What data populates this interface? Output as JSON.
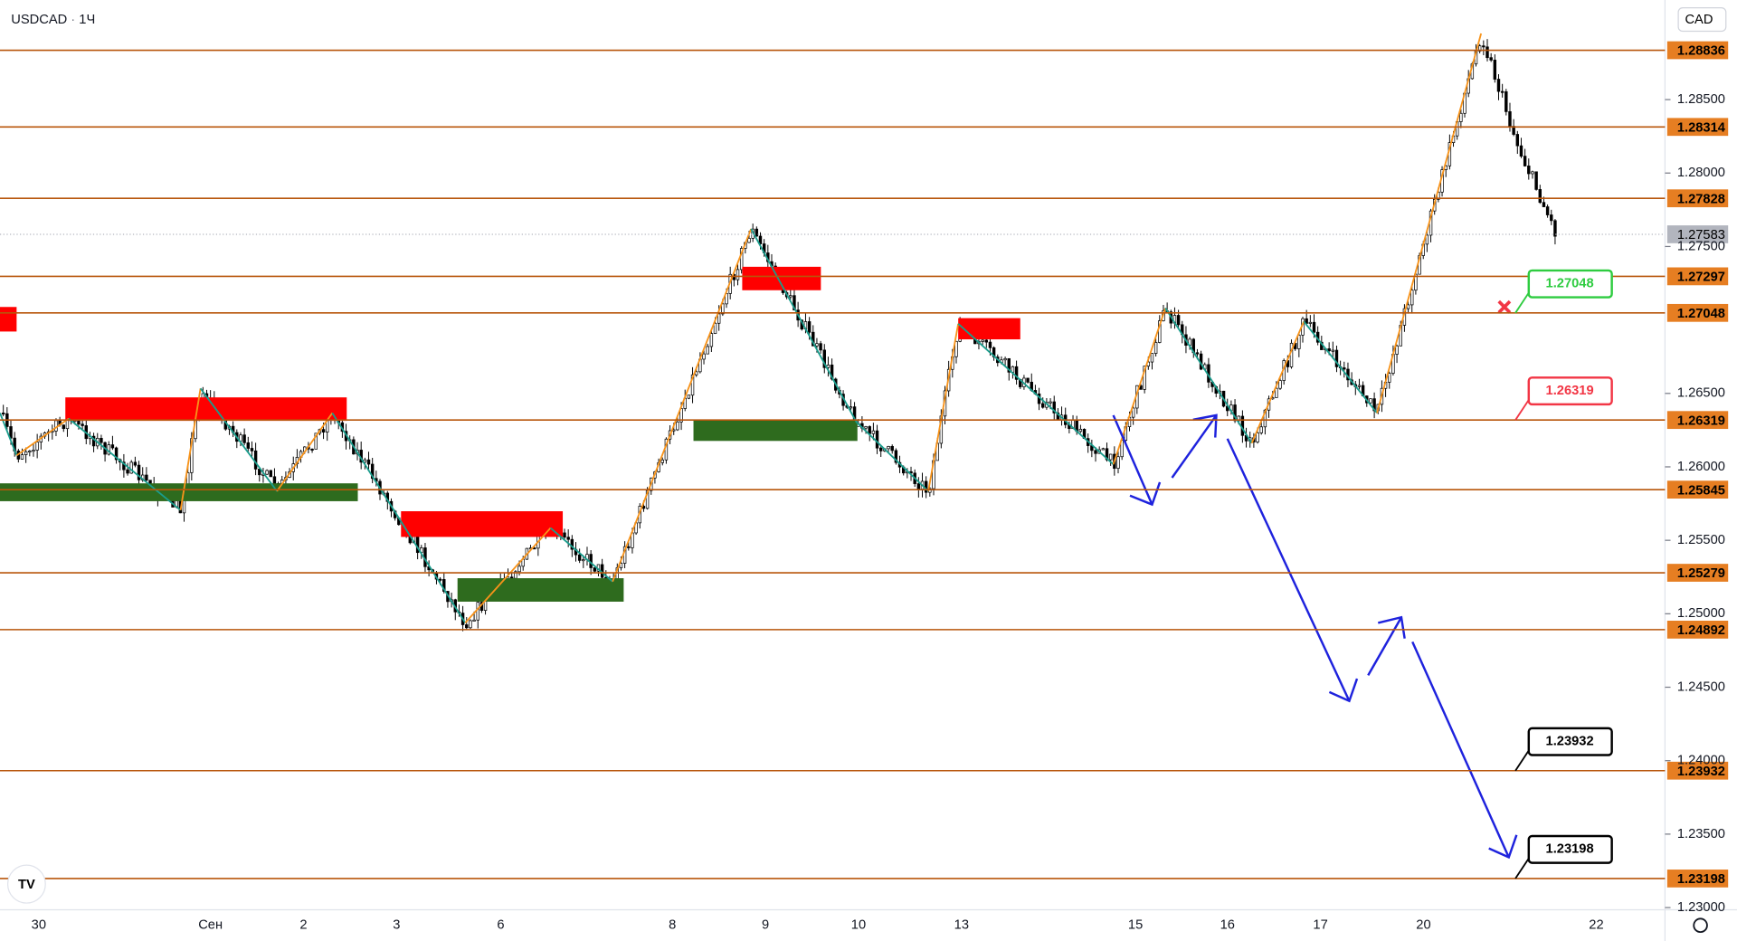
{
  "header": {
    "symbol": "USDCAD",
    "interval": "1Ч"
  },
  "currency": "CAD",
  "price_axis": {
    "ticks": [
      {
        "value": 1.285,
        "label": "1.28500"
      },
      {
        "value": 1.28,
        "label": "1.28000"
      },
      {
        "value": 1.275,
        "label": "1.27500"
      },
      {
        "value": 1.265,
        "label": "1.26500"
      },
      {
        "value": 1.26,
        "label": "1.26000"
      },
      {
        "value": 1.255,
        "label": "1.25500"
      },
      {
        "value": 1.25,
        "label": "1.25000"
      },
      {
        "value": 1.245,
        "label": "1.24500"
      },
      {
        "value": 1.24,
        "label": "1.24000"
      },
      {
        "value": 1.235,
        "label": "1.23500"
      },
      {
        "value": 1.23,
        "label": "1.23000"
      }
    ]
  },
  "levels": [
    1.28836,
    1.28314,
    1.27828,
    1.27297,
    1.27048,
    1.26319,
    1.25845,
    1.25279,
    1.24892,
    1.23932,
    1.23198
  ],
  "current_price": 1.27583,
  "time_axis": [
    "30",
    "Сен",
    "2",
    "3",
    "6",
    "8",
    "9",
    "10",
    "13",
    "15",
    "16",
    "17",
    "20",
    "22"
  ],
  "callouts": [
    {
      "value": 1.27048,
      "color": "#2ecc40"
    },
    {
      "value": 1.26319,
      "color": "#f23645"
    },
    {
      "value": 1.23932,
      "color": "#000000"
    },
    {
      "value": 1.23198,
      "color": "#000000"
    }
  ]
}
